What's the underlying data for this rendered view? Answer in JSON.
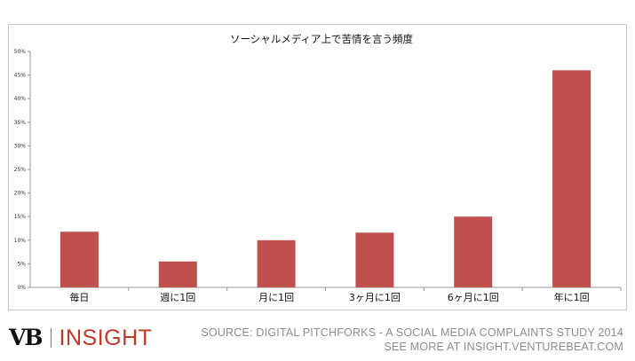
{
  "chart_data": {
    "type": "bar",
    "title": "ソーシャルメディア上で苦情を言う頻度",
    "categories": [
      "毎日",
      "週に1回",
      "月に1回",
      "3ヶ月に1回",
      "6ヶ月に1回",
      "年に1回"
    ],
    "values": [
      0.118,
      0.055,
      0.1,
      0.116,
      0.15,
      0.46
    ],
    "y_ticks": [
      "0%",
      "5%",
      "10%",
      "15%",
      "20%",
      "25%",
      "30%",
      "35%",
      "40%",
      "45%",
      "50%"
    ],
    "ylim": [
      0,
      0.5
    ],
    "xlabel": "",
    "ylabel": "",
    "bar_color": "#c0504d",
    "grid": false,
    "legend": "none"
  },
  "footer": {
    "logo_mark": "VB",
    "logo_word": "INSIGHT",
    "source_line": "SOURCE: DIGITAL PITCHFORKS - A SOCIAL MEDIA COMPLAINTS STUDY 2014",
    "more_line": "SEE MORE AT INSIGHT.VENTUREBEAT.COM"
  },
  "colors": {
    "accent": "#c0392b",
    "bar": "#c0504d",
    "footer_text": "#8e8e8e"
  }
}
